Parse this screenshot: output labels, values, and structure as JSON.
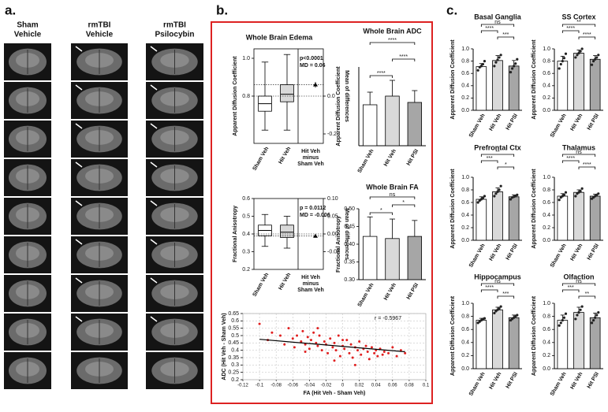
{
  "figure": {
    "panel_labels": [
      "a.",
      "b.",
      "c."
    ],
    "mri_columns": [
      [
        "Sham",
        "Vehicle"
      ],
      [
        "rmTBI",
        "Vehicle"
      ],
      [
        "rmTBI",
        "Psilocybin"
      ]
    ]
  },
  "chart_data": [
    {
      "type": "box",
      "title": "Whole Brain Edema",
      "ylabel": "Apparent Diffusion Coefficient",
      "y2label": "Mean of differences",
      "categories": [
        "Sham Veh",
        "Hit Veh"
      ],
      "boxes": [
        {
          "min": 0.62,
          "q1": 0.72,
          "median": 0.76,
          "q3": 0.8,
          "max": 0.98
        },
        {
          "min": 0.62,
          "q1": 0.77,
          "median": 0.81,
          "q3": 0.86,
          "max": 1.02
        }
      ],
      "difference_label": [
        "Hit Veh",
        "minus",
        "Sham Veh"
      ],
      "difference": {
        "value": 0.06,
        "error": 0.015
      },
      "annotations": [
        "p<0.0001",
        "MD = 0.06"
      ],
      "ylim": [
        0.55,
        1.05
      ],
      "yticks": [
        0.8,
        {
          "value": 1,
          "label": "1.0"
        }
      ],
      "y2lim": [
        -0.25,
        0.25
      ],
      "y2ticks": [
        {
          "value": 0,
          "label": "0.0"
        },
        -0.2
      ]
    },
    {
      "type": "bar",
      "title": "Whole Brain ADC",
      "ylabel": "Apparent Diffusion Coefficient",
      "categories": [
        "Sham Veh",
        "Hit Veh",
        "Hit PSI"
      ],
      "values": [
        0.76,
        0.815,
        0.775
      ],
      "errors": [
        0.08,
        0.1,
        0.075
      ],
      "colors": [
        "#ffffff",
        "#d9d9d9",
        "#a6a6a6"
      ],
      "ylim": [
        0.5,
        1.0
      ],
      "comparisons": [
        {
          "pair": [
            0,
            1
          ],
          "label": "****"
        },
        {
          "pair": [
            1,
            2
          ],
          "label": "****"
        },
        {
          "pair": [
            0,
            2
          ],
          "label": "****"
        }
      ]
    },
    {
      "type": "box",
      "ylabel": "Fractional Anisotropy",
      "y2label": "Mean of differences",
      "categories": [
        "Sham Veh",
        "Hit Veh"
      ],
      "boxes": [
        {
          "min": 0.33,
          "q1": 0.39,
          "median": 0.42,
          "q3": 0.45,
          "max": 0.51
        },
        {
          "min": 0.32,
          "q1": 0.38,
          "median": 0.41,
          "q3": 0.45,
          "max": 0.5
        }
      ],
      "difference_label": [
        "Hit Veh",
        "minus",
        "Sham Veh"
      ],
      "difference": {
        "value": -0.006,
        "error": 0.004
      },
      "annotations": [
        "p = 0.0112",
        "MD = -0.006"
      ],
      "ylim": [
        0.2,
        0.6
      ],
      "yticks": [
        0.2,
        0.3,
        0.4,
        0.5,
        0.6
      ],
      "y2lim": [
        -0.1,
        0.1
      ],
      "y2ticks": [
        {
          "value": 0.1,
          "label": "0.10"
        },
        0.05,
        {
          "value": 0,
          "label": "0.00"
        },
        -0.05
      ]
    },
    {
      "type": "bar",
      "title": "Whole Brain FA",
      "ylabel": "Fractional Anisotropy",
      "categories": [
        "Sham Veh",
        "Hit Veh",
        "Hit PSI"
      ],
      "values": [
        0.422,
        0.416,
        0.422
      ],
      "errors": [
        0.055,
        0.055,
        0.045
      ],
      "colors": [
        "#ffffff",
        "#d9d9d9",
        "#a6a6a6"
      ],
      "ylim": [
        0.3,
        0.5
      ],
      "yticks": [
        {
          "value": 0.3,
          "label": "0.30"
        },
        0.35,
        {
          "value": 0.4,
          "label": "0.40"
        },
        0.45,
        {
          "value": 0.5,
          "label": "0.50"
        }
      ],
      "comparisons": [
        {
          "pair": [
            0,
            1
          ],
          "label": "*"
        },
        {
          "pair": [
            1,
            2
          ],
          "label": "*"
        },
        {
          "pair": [
            0,
            2
          ],
          "label": "ns"
        }
      ]
    },
    {
      "type": "scatter",
      "xlabel": "FA (Hit Veh - Sham Veh)",
      "ylabel": "ADC (Hit Veh - Sham Veh)",
      "annotation": "r = -0.5967",
      "color": "#e02020",
      "x": [
        -0.1,
        -0.09,
        -0.085,
        -0.075,
        -0.07,
        -0.065,
        -0.06,
        -0.058,
        -0.055,
        -0.05,
        -0.048,
        -0.045,
        -0.042,
        -0.04,
        -0.038,
        -0.035,
        -0.032,
        -0.03,
        -0.028,
        -0.025,
        -0.022,
        -0.02,
        -0.018,
        -0.015,
        -0.012,
        -0.01,
        -0.008,
        -0.005,
        -0.003,
        0,
        0.002,
        0.005,
        0.008,
        0.01,
        0.012,
        0.015,
        0.018,
        0.02,
        0.022,
        0.025,
        0.028,
        0.03,
        0.032,
        0.035,
        0.038,
        0.04,
        0.042,
        0.045,
        0.048,
        0.05,
        0.055,
        0.06,
        0.065,
        0.07,
        0.075,
        -0.03,
        -0.01,
        0,
        0.015,
        -0.045
      ],
      "y": [
        0.58,
        0.47,
        0.52,
        0.5,
        0.44,
        0.55,
        0.48,
        0.42,
        0.5,
        0.46,
        0.53,
        0.44,
        0.49,
        0.41,
        0.47,
        0.52,
        0.45,
        0.43,
        0.5,
        0.4,
        0.46,
        0.44,
        0.38,
        0.48,
        0.42,
        0.45,
        0.4,
        0.5,
        0.36,
        0.43,
        0.41,
        0.47,
        0.38,
        0.44,
        0.35,
        0.42,
        0.4,
        0.46,
        0.37,
        0.41,
        0.43,
        0.39,
        0.34,
        0.42,
        0.38,
        0.4,
        0.36,
        0.41,
        0.37,
        0.39,
        0.38,
        0.42,
        0.36,
        0.4,
        0.38,
        0.55,
        0.33,
        0.47,
        0.3,
        0.39
      ],
      "trend": {
        "x": [
          -0.1,
          0.075
        ],
        "y": [
          0.475,
          0.39
        ]
      },
      "xlim": [
        -0.12,
        0.1
      ],
      "xticks": [
        -0.12,
        -0.1,
        -0.08,
        -0.06,
        -0.04,
        -0.02,
        0,
        0.02,
        0.04,
        0.06,
        0.08,
        0.1
      ],
      "ylim": [
        0.2,
        0.65
      ],
      "yticks": [
        0.2,
        0.25,
        0.3,
        0.35,
        0.4,
        0.45,
        0.5,
        0.55,
        0.6,
        0.65
      ],
      "grid": true
    },
    {
      "type": "bar",
      "title": "Basal Ganglia",
      "ylabel": "Apparent Diffusion Coefficient",
      "categories": [
        "Sham Veh",
        "Hit Veh",
        "Hit PSI"
      ],
      "values": [
        0.71,
        0.81,
        0.72
      ],
      "errors": [
        0.05,
        0.08,
        0.09
      ],
      "points": [
        [
          0.65,
          0.7,
          0.72,
          0.75,
          0.8
        ],
        [
          0.72,
          0.78,
          0.82,
          0.86,
          0.9
        ],
        [
          0.62,
          0.68,
          0.72,
          0.76,
          0.83
        ]
      ],
      "colors": [
        "#ffffff",
        "#d9d9d9",
        "#a6a6a6"
      ],
      "ylim": [
        0,
        1.0
      ],
      "yticks": [
        {
          "value": 0,
          "label": "0.0"
        },
        0.2,
        0.4,
        0.6,
        0.8,
        {
          "value": 1,
          "label": "1.0"
        }
      ],
      "comparisons": [
        {
          "pair": [
            1,
            2
          ],
          "label": "***"
        },
        {
          "pair": [
            0,
            1
          ],
          "label": "****"
        },
        {
          "pair": [
            0,
            2
          ],
          "label": "ns"
        }
      ]
    },
    {
      "type": "bar",
      "title": "SS Cortex",
      "ylabel": "Apparent Diffusion Coefficient",
      "categories": [
        "Sham Veh",
        "Hit Veh",
        "Hit PSI"
      ],
      "values": [
        0.8,
        0.93,
        0.83
      ],
      "errors": [
        0.08,
        0.05,
        0.06
      ],
      "points": [
        [
          0.68,
          0.75,
          0.8,
          0.85,
          0.92
        ],
        [
          0.86,
          0.9,
          0.93,
          0.96,
          1.0
        ],
        [
          0.74,
          0.8,
          0.83,
          0.86,
          0.9
        ]
      ],
      "colors": [
        "#ffffff",
        "#d9d9d9",
        "#a6a6a6"
      ],
      "ylim": [
        0,
        1.0
      ],
      "yticks": [
        {
          "value": 0,
          "label": "0.0"
        },
        0.2,
        0.4,
        0.6,
        0.8,
        {
          "value": 1,
          "label": "1.0"
        }
      ],
      "comparisons": [
        {
          "pair": [
            1,
            2
          ],
          "label": "****"
        },
        {
          "pair": [
            0,
            1
          ],
          "label": "****"
        },
        {
          "pair": [
            0,
            2
          ],
          "label": "**"
        }
      ]
    },
    {
      "type": "bar",
      "title": "Prefrontal Ctx",
      "ylabel": "Apparent Diffusion Coefficient",
      "categories": [
        "Sham Veh",
        "Hit Veh",
        "Hit PSI"
      ],
      "values": [
        0.65,
        0.77,
        0.69
      ],
      "errors": [
        0.04,
        0.06,
        0.03
      ],
      "points": [
        [
          0.6,
          0.63,
          0.65,
          0.67,
          0.7
        ],
        [
          0.7,
          0.74,
          0.77,
          0.8,
          0.86
        ],
        [
          0.65,
          0.68,
          0.69,
          0.7,
          0.72
        ]
      ],
      "colors": [
        "#ffffff",
        "#d9d9d9",
        "#a6a6a6"
      ],
      "ylim": [
        0,
        1.0
      ],
      "yticks": [
        {
          "value": 0,
          "label": "0.0"
        },
        0.2,
        0.4,
        0.6,
        0.8,
        {
          "value": 1,
          "label": "1.0"
        }
      ],
      "comparisons": [
        {
          "pair": [
            1,
            2
          ],
          "label": "*"
        },
        {
          "pair": [
            0,
            1
          ],
          "label": "***"
        },
        {
          "pair": [
            0,
            2
          ],
          "label": "**"
        }
      ]
    },
    {
      "type": "bar",
      "title": "Thalamus",
      "ylabel": "Apparent Diffusion Coefficient",
      "categories": [
        "Sham Veh",
        "Hit Veh",
        "Hit PSI"
      ],
      "values": [
        0.7,
        0.76,
        0.7
      ],
      "errors": [
        0.04,
        0.04,
        0.03
      ],
      "points": [
        [
          0.64,
          0.68,
          0.7,
          0.72,
          0.76
        ],
        [
          0.7,
          0.74,
          0.76,
          0.78,
          0.82
        ],
        [
          0.66,
          0.68,
          0.7,
          0.72,
          0.74
        ]
      ],
      "colors": [
        "#ffffff",
        "#d9d9d9",
        "#a6a6a6"
      ],
      "ylim": [
        0,
        1.0
      ],
      "yticks": [
        {
          "value": 0,
          "label": "0.0"
        },
        0.2,
        0.4,
        0.6,
        0.8,
        {
          "value": 1,
          "label": "1.0"
        }
      ],
      "comparisons": [
        {
          "pair": [
            1,
            2
          ],
          "label": "****"
        },
        {
          "pair": [
            0,
            1
          ],
          "label": "****"
        },
        {
          "pair": [
            0,
            2
          ],
          "label": "ns"
        }
      ]
    },
    {
      "type": "bar",
      "title": "Hippocampus",
      "ylabel": "Apparent Diffusion Coefficient",
      "categories": [
        "Sham Veh",
        "Hit Veh",
        "Hit PSI"
      ],
      "values": [
        0.74,
        0.9,
        0.78
      ],
      "errors": [
        0.03,
        0.04,
        0.04
      ],
      "points": [
        [
          0.7,
          0.72,
          0.74,
          0.76,
          0.77
        ],
        [
          0.85,
          0.88,
          0.9,
          0.92,
          0.95
        ],
        [
          0.74,
          0.76,
          0.78,
          0.8,
          0.82
        ]
      ],
      "colors": [
        "#ffffff",
        "#d9d9d9",
        "#a6a6a6"
      ],
      "ylim": [
        0,
        1.0
      ],
      "yticks": [
        {
          "value": 0,
          "label": "0.0"
        },
        0.2,
        0.4,
        0.6,
        0.8,
        {
          "value": 1,
          "label": "1.0"
        }
      ],
      "comparisons": [
        {
          "pair": [
            1,
            2
          ],
          "label": "***"
        },
        {
          "pair": [
            0,
            1
          ],
          "label": "****"
        },
        {
          "pair": [
            0,
            2
          ],
          "label": "ns"
        }
      ]
    },
    {
      "type": "bar",
      "title": "Olfaction",
      "ylabel": "Apparent Diffusion Coefficient",
      "categories": [
        "Sham Veh",
        "Hit Veh",
        "Hit PSI"
      ],
      "values": [
        0.74,
        0.86,
        0.78
      ],
      "errors": [
        0.08,
        0.08,
        0.07
      ],
      "points": [
        [
          0.66,
          0.7,
          0.74,
          0.78,
          0.84
        ],
        [
          0.76,
          0.82,
          0.86,
          0.9,
          0.95
        ],
        [
          0.7,
          0.74,
          0.78,
          0.82,
          0.86
        ]
      ],
      "colors": [
        "#ffffff",
        "#d9d9d9",
        "#a6a6a6"
      ],
      "ylim": [
        0,
        1.0
      ],
      "yticks": [
        {
          "value": 0,
          "label": "0.0"
        },
        0.2,
        0.4,
        0.6,
        0.8,
        {
          "value": 1,
          "label": "1.0"
        }
      ],
      "comparisons": [
        {
          "pair": [
            1,
            2
          ],
          "label": "**"
        },
        {
          "pair": [
            0,
            1
          ],
          "label": "***"
        },
        {
          "pair": [
            0,
            2
          ],
          "label": "ns"
        }
      ]
    }
  ]
}
